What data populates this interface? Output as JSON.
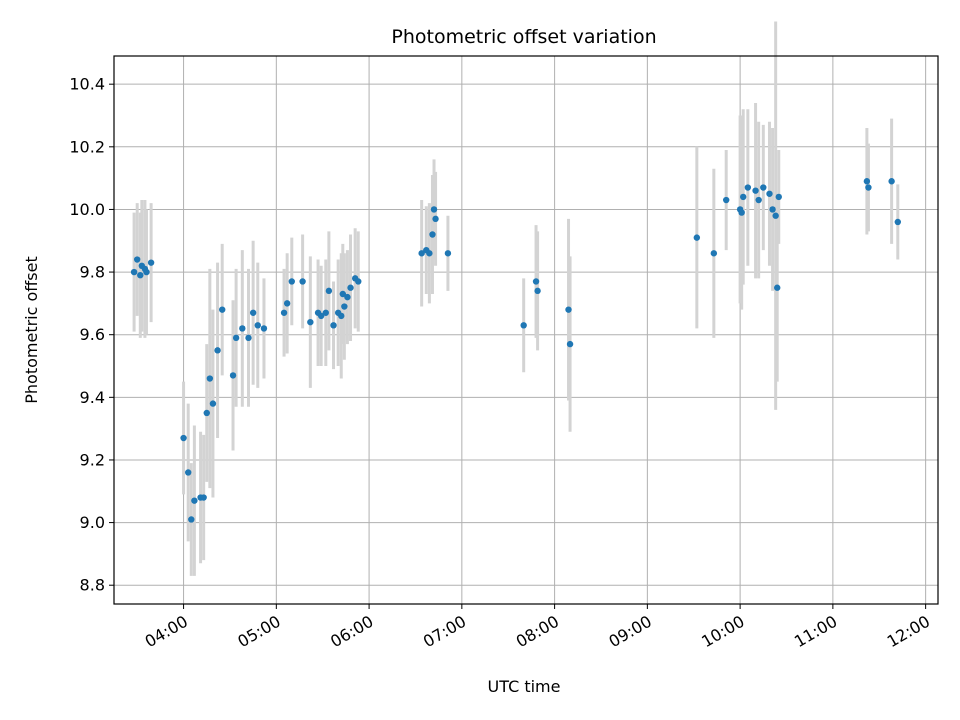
{
  "chart_data": {
    "type": "scatter",
    "title": "Photometric offset variation",
    "xlabel": "UTC time",
    "ylabel": "Photometric offset",
    "xlim": [
      "03:15",
      "12:08"
    ],
    "ylim": [
      8.74,
      10.49
    ],
    "grid": true,
    "x_ticks": [
      "04:00",
      "05:00",
      "06:00",
      "07:00",
      "08:00",
      "09:00",
      "10:00",
      "11:00",
      "12:00"
    ],
    "y_ticks": [
      "8.8",
      "9.0",
      "9.2",
      "9.4",
      "9.6",
      "9.8",
      "10.0",
      "10.2",
      "10.4"
    ],
    "point_color": "#1f77b4",
    "errorbar_color": "#d3d3d3",
    "series": [
      {
        "x": [
          "03:28",
          "03:30",
          "03:32",
          "03:33",
          "03:35",
          "03:36",
          "03:39",
          "04:00",
          "04:03",
          "04:05",
          "04:07",
          "04:11",
          "04:13",
          "04:15",
          "04:17",
          "04:19",
          "04:22",
          "04:25",
          "04:32",
          "04:34",
          "04:38",
          "04:42",
          "04:45",
          "04:48",
          "04:52",
          "05:05",
          "05:07",
          "05:10",
          "05:17",
          "05:22",
          "05:27",
          "05:29",
          "05:32",
          "05:34",
          "05:37",
          "05:40",
          "05:42",
          "05:43",
          "05:44",
          "05:46",
          "05:48",
          "05:51",
          "05:53",
          "06:34",
          "06:37",
          "06:39",
          "06:41",
          "06:42",
          "06:43",
          "06:51",
          "07:40",
          "07:48",
          "07:49",
          "08:09",
          "08:10",
          "09:32",
          "09:43",
          "09:51",
          "10:00",
          "10:01",
          "10:02",
          "10:05",
          "10:10",
          "10:12",
          "10:15",
          "10:19",
          "10:21",
          "10:23",
          "10:24",
          "10:25",
          "11:22",
          "11:23",
          "11:38",
          "11:42"
        ],
        "y": [
          9.8,
          9.84,
          9.79,
          9.82,
          9.81,
          9.8,
          9.83,
          9.27,
          9.16,
          9.01,
          9.07,
          9.08,
          9.08,
          9.35,
          9.46,
          9.38,
          9.55,
          9.68,
          9.47,
          9.59,
          9.62,
          9.59,
          9.67,
          9.63,
          9.62,
          9.67,
          9.7,
          9.77,
          9.77,
          9.64,
          9.67,
          9.66,
          9.67,
          9.74,
          9.63,
          9.67,
          9.66,
          9.73,
          9.69,
          9.72,
          9.75,
          9.78,
          9.77,
          9.86,
          9.87,
          9.86,
          9.92,
          10.0,
          9.97,
          9.86,
          9.63,
          9.77,
          9.74,
          9.68,
          9.57,
          9.91,
          9.86,
          10.03,
          10.0,
          9.99,
          10.04,
          10.07,
          10.06,
          10.03,
          10.07,
          10.05,
          10.0,
          9.98,
          9.75,
          10.04,
          10.09,
          10.07,
          10.09,
          9.96
        ],
        "err": [
          0.19,
          0.18,
          0.2,
          0.21,
          0.22,
          0.2,
          0.19,
          0.18,
          0.22,
          0.18,
          0.24,
          0.21,
          0.2,
          0.22,
          0.35,
          0.3,
          0.28,
          0.21,
          0.24,
          0.22,
          0.25,
          0.22,
          0.23,
          0.2,
          0.16,
          0.14,
          0.16,
          0.14,
          0.15,
          0.21,
          0.17,
          0.16,
          0.17,
          0.19,
          0.14,
          0.17,
          0.2,
          0.16,
          0.17,
          0.15,
          0.17,
          0.16,
          0.16,
          0.17,
          0.14,
          0.16,
          0.19,
          0.16,
          0.15,
          0.12,
          0.15,
          0.18,
          0.19,
          0.29,
          0.28,
          0.29,
          0.27,
          0.16,
          0.3,
          0.31,
          0.28,
          0.25,
          0.28,
          0.25,
          0.2,
          0.23,
          0.26,
          0.62,
          0.3,
          0.15,
          0.17,
          0.14,
          0.2,
          0.12
        ]
      }
    ]
  }
}
